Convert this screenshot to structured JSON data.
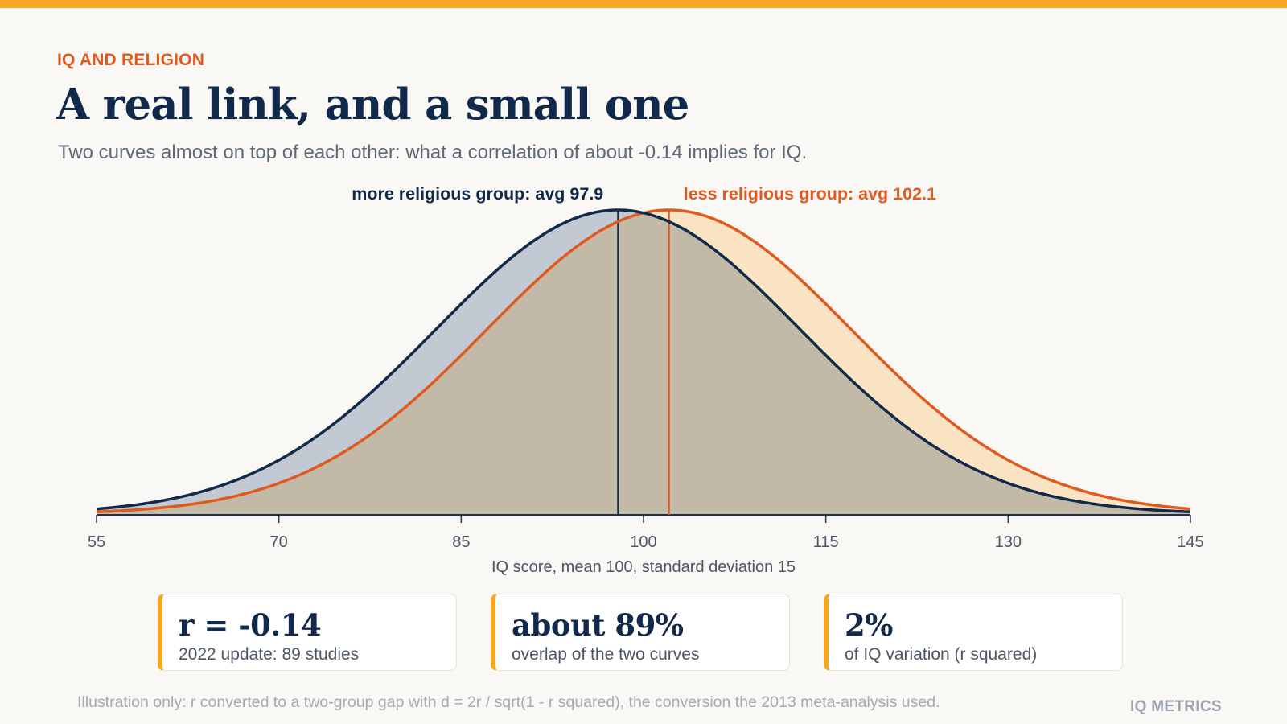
{
  "header": {
    "kicker": "IQ AND RELIGION",
    "title": "A real link, and a small one",
    "subtitle": "Two curves almost on top of each other: what a correlation of about -0.14 implies for IQ."
  },
  "chart_data": {
    "type": "area",
    "title": "",
    "xlabel": "IQ score, mean 100, standard deviation 15",
    "ylabel": "",
    "xlim": [
      55,
      145
    ],
    "x_ticks": [
      55,
      70,
      85,
      100,
      115,
      130,
      145
    ],
    "grid": false,
    "series": [
      {
        "name": "more religious group",
        "label": "more religious group: avg 97.9",
        "mean": 97.9,
        "sd": 15,
        "color": "#112a4b",
        "fill": "#c3c9d3"
      },
      {
        "name": "less religious group",
        "label": "less religious group: avg 102.1",
        "mean": 102.1,
        "sd": 15,
        "color": "#e05a1f",
        "fill": "#fae3c3"
      }
    ],
    "overlap_fill": "#c2b9a7"
  },
  "stats": [
    {
      "value": "r = -0.14",
      "label": "2022 update: 89 studies"
    },
    {
      "value": "about 89%",
      "label": "overlap of the two curves"
    },
    {
      "value": "2%",
      "label": "of IQ variation (r squared)"
    }
  ],
  "footer": {
    "note": "Illustration only: r converted to a two-group gap with d = 2r / sqrt(1 - r squared), the conversion the 2013 meta-analysis used.",
    "brand": "IQ METRICS"
  },
  "colors": {
    "accent": "#f5a623",
    "navy": "#112a4b",
    "orange": "#e05a1f"
  }
}
